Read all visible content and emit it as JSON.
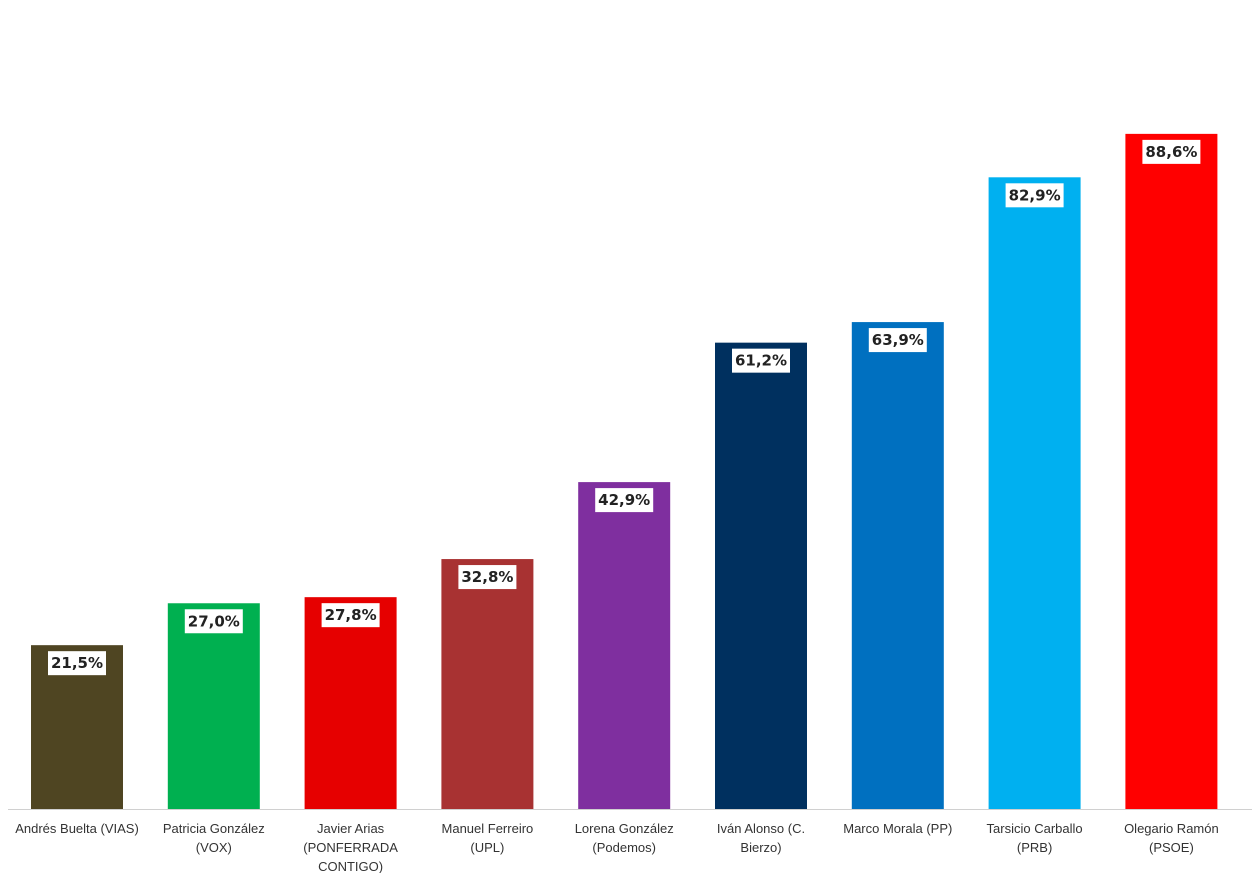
{
  "chart_data": {
    "type": "bar",
    "categories": [
      [
        "Andrés Buelta (VIAS)"
      ],
      [
        "Patricia González",
        "(VOX)"
      ],
      [
        "Javier Arias",
        "(PONFERRADA",
        "CONTIGO)"
      ],
      [
        "Manuel Ferreiro",
        "(UPL)"
      ],
      [
        "Lorena González",
        "(Podemos)"
      ],
      [
        "Iván Alonso (C.",
        "Bierzo)"
      ],
      [
        "Marco Morala (PP)"
      ],
      [
        "Tarsicio Carballo",
        "(PRB)"
      ],
      [
        "Olegario Ramón",
        "(PSOE)"
      ]
    ],
    "values": [
      21.5,
      27.0,
      27.8,
      32.8,
      42.9,
      61.2,
      63.9,
      82.9,
      88.6
    ],
    "data_labels": [
      "21,5%",
      "27,0%",
      "27,8%",
      "32,8%",
      "42,9%",
      "61,2%",
      "63,9%",
      "82,9%",
      "88,6%"
    ],
    "colors": [
      "#4f4522",
      "#00b050",
      "#e60000",
      "#a83232",
      "#7f2f9f",
      "#00305f",
      "#0070c0",
      "#00b0f0",
      "#ff0000"
    ],
    "ylim": [
      0,
      100
    ],
    "grid": false,
    "legend": "none"
  }
}
